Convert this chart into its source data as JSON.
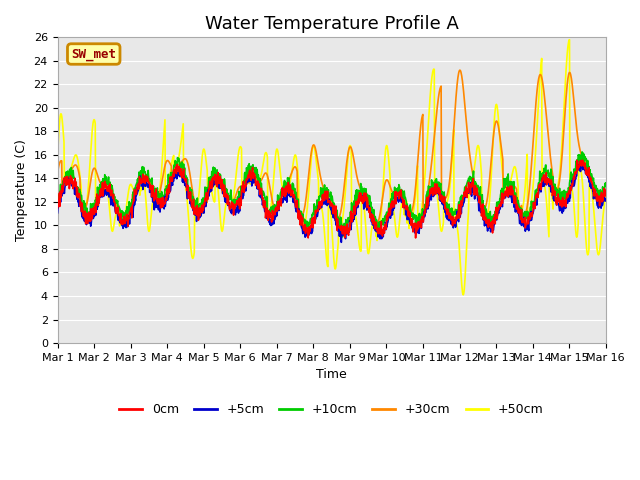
{
  "title": "Water Temperature Profile A",
  "xlabel": "Time",
  "ylabel": "Temperature (C)",
  "ylim": [
    0,
    26
  ],
  "xlim": [
    0,
    15
  ],
  "xtick_labels": [
    "Mar 1",
    "Mar 2",
    "Mar 3",
    "Mar 4",
    "Mar 5",
    "Mar 6",
    "Mar 7",
    "Mar 8",
    "Mar 9",
    "Mar 10",
    "Mar 11",
    "Mar 12",
    "Mar 13",
    "Mar 14",
    "Mar 15",
    "Mar 16"
  ],
  "xtick_positions": [
    0,
    1,
    2,
    3,
    4,
    5,
    6,
    7,
    8,
    9,
    10,
    11,
    12,
    13,
    14,
    15
  ],
  "ytick_positions": [
    0,
    2,
    4,
    6,
    8,
    10,
    12,
    14,
    16,
    18,
    20,
    22,
    24,
    26
  ],
  "legend_labels": [
    "0cm",
    "+5cm",
    "+10cm",
    "+30cm",
    "+50cm"
  ],
  "legend_colors": [
    "#ff0000",
    "#0000cc",
    "#00cc00",
    "#ff8800",
    "#ffff00"
  ],
  "line_widths": [
    1.2,
    1.2,
    1.2,
    1.2,
    1.2
  ],
  "sw_met_label": "SW_met",
  "sw_met_color": "#990000",
  "sw_met_bg": "#ffffaa",
  "sw_met_border": "#cc8800",
  "plot_bg": "#e8e8e8",
  "title_fontsize": 13,
  "axis_fontsize": 9,
  "tick_fontsize": 8,
  "legend_fontsize": 9,
  "figsize": [
    6.4,
    4.8
  ],
  "dpi": 100
}
